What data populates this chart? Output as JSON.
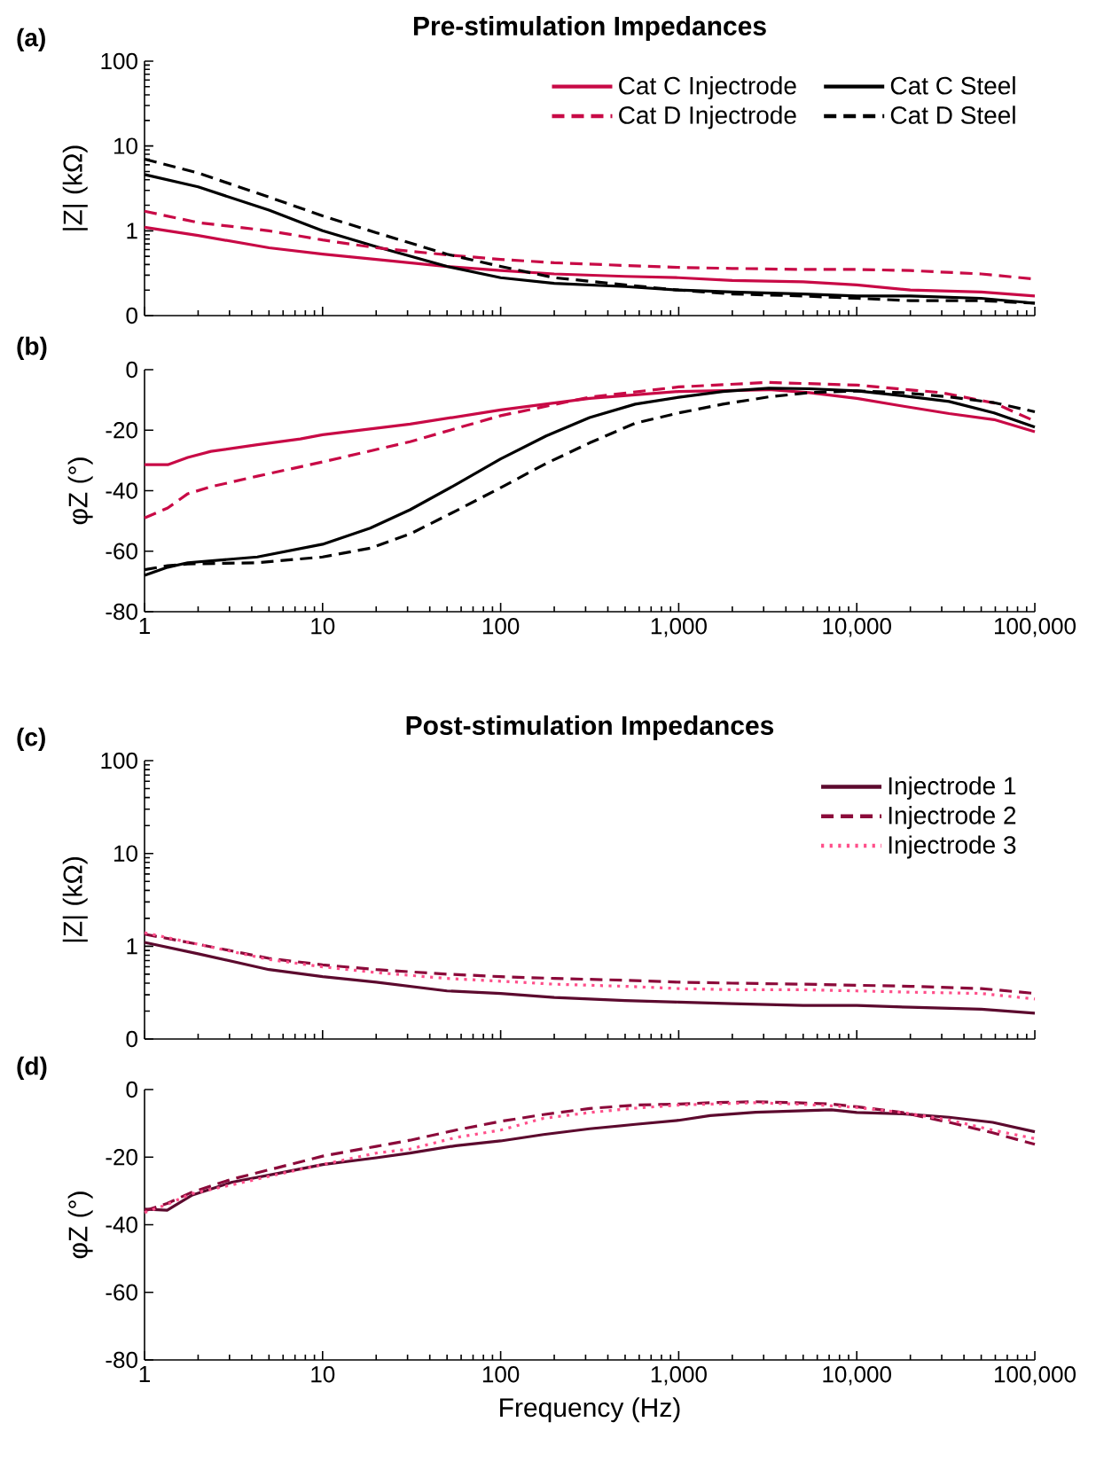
{
  "chart_data": [
    {
      "type": "line",
      "title": "Pre-stimulation Impedances",
      "annotations": [
        "(a)"
      ],
      "ylabel": "|Z| (kΩ)",
      "log": "xy",
      "tick_labels": "y",
      "legend": "top right",
      "x": [
        1,
        2,
        5,
        10,
        20,
        50,
        100,
        200,
        500,
        1000,
        2000,
        5000,
        10000,
        20000,
        50000,
        100000
      ],
      "xlim": [
        1,
        100000
      ],
      "xticks": [
        1,
        10,
        100,
        1000,
        10000,
        100000
      ],
      "ylim": [
        0.1,
        100
      ],
      "yticks": [
        {
          "value": 0.1,
          "label": "0"
        },
        1,
        10,
        100
      ],
      "series": [
        {
          "name": "Cat C Injectrode",
          "color": "#c80a46",
          "line_style": "solid",
          "values": [
            1.1,
            0.88,
            0.63,
            0.53,
            0.46,
            0.38,
            0.34,
            0.31,
            0.29,
            0.28,
            0.26,
            0.25,
            0.23,
            0.2,
            0.19,
            0.17
          ]
        },
        {
          "name": "Cat C Steel",
          "color": "#000000",
          "line_style": "solid",
          "values": [
            4.6,
            3.3,
            1.75,
            1.0,
            0.65,
            0.38,
            0.28,
            0.24,
            0.22,
            0.2,
            0.19,
            0.18,
            0.17,
            0.17,
            0.16,
            0.14
          ]
        },
        {
          "name": "Cat D Injectrode",
          "color": "#c80a46",
          "line_style": "dashed",
          "values": [
            1.7,
            1.25,
            1.0,
            0.78,
            0.63,
            0.52,
            0.46,
            0.42,
            0.39,
            0.37,
            0.36,
            0.35,
            0.35,
            0.34,
            0.31,
            0.27
          ]
        },
        {
          "name": "Cat D Steel",
          "color": "#000000",
          "line_style": "dashed",
          "values": [
            7,
            4.8,
            2.5,
            1.5,
            0.95,
            0.53,
            0.38,
            0.28,
            0.23,
            0.2,
            0.18,
            0.17,
            0.16,
            0.15,
            0.15,
            0.14
          ]
        }
      ]
    },
    {
      "type": "line",
      "annotations": [
        "(b)"
      ],
      "ylabel": "φZ (°)",
      "log": "x",
      "x": [
        1,
        1.35,
        1.75,
        4.3,
        10,
        18.5,
        31,
        56,
        100,
        180,
        316,
        570,
        1000,
        1770,
        3200,
        5400,
        10000,
        18000,
        33000,
        59000,
        100000
      ],
      "xlim": [
        1,
        100000
      ],
      "xticks": [
        1,
        10,
        100,
        {
          "value": 1000,
          "label": "1,000"
        },
        {
          "value": 10000,
          "label": "10,000"
        },
        {
          "value": 100000,
          "label": "100,000"
        }
      ],
      "ylim": [
        -80,
        0
      ],
      "yticks": [
        -80,
        -60,
        -40,
        -20,
        0
      ],
      "series": [
        {
          "color": "#c80a46",
          "line_style": "solid",
          "x": [
            1,
            1.35,
            1.75,
            2.36,
            4.3,
            7.5,
            10,
            31,
            100,
            316,
            1000,
            3200,
            5400,
            10000,
            18000,
            33000,
            59000,
            100000
          ],
          "values": [
            -31.4,
            -31.4,
            -29,
            -27,
            -24.8,
            -22.9,
            -21.5,
            -18,
            -13.3,
            -9.5,
            -7.2,
            -6.6,
            -7.6,
            -9.5,
            -12,
            -14.5,
            -16.5,
            -20.5
          ]
        },
        {
          "color": "#000000",
          "line_style": "solid",
          "values": [
            -68,
            -65.3,
            -63.8,
            -61.9,
            -57.7,
            -52.4,
            -46.3,
            -38,
            -29.5,
            -21.9,
            -15.8,
            -11.4,
            -9.1,
            -7.2,
            -6.1,
            -6.3,
            -7,
            -8.6,
            -10.5,
            -14.3,
            -19
          ]
        },
        {
          "color": "#c80a46",
          "line_style": "dashed",
          "x": [
            1,
            1.35,
            1.75,
            2.36,
            4.3,
            10,
            31,
            100,
            316,
            1000,
            3200,
            10000,
            30000,
            59000,
            100000
          ],
          "values": [
            -49,
            -45.7,
            -41,
            -38.7,
            -35.2,
            -30.5,
            -23.8,
            -15.2,
            -9.1,
            -5.7,
            -4.2,
            -5.1,
            -7.6,
            -11,
            -17
          ]
        },
        {
          "color": "#000000",
          "line_style": "dashed",
          "values": [
            -66.1,
            -64.8,
            -64.2,
            -63.8,
            -61.9,
            -59,
            -54.3,
            -46.7,
            -39,
            -31,
            -24.2,
            -17.7,
            -14.3,
            -11.4,
            -9,
            -7.6,
            -7,
            -7.6,
            -9,
            -10.9,
            -13.9
          ]
        }
      ]
    },
    {
      "type": "line",
      "title": "Post-stimulation Impedances",
      "annotations": [
        "(c)"
      ],
      "ylabel": "|Z| (kΩ)",
      "log": "xy",
      "tick_labels": "y",
      "legend": "top right",
      "x": [
        1,
        2,
        5,
        10,
        20,
        50,
        100,
        200,
        500,
        1000,
        2000,
        5000,
        10000,
        20000,
        50000,
        100000
      ],
      "xlim": [
        1,
        100000
      ],
      "xticks": [
        1,
        10,
        100,
        1000,
        10000,
        100000
      ],
      "ylim": [
        0.1,
        100
      ],
      "yticks": [
        {
          "value": 0.1,
          "label": "0"
        },
        1,
        10,
        100
      ],
      "series": [
        {
          "name": "Injectrode 1",
          "color": "#5c0a2e",
          "line_style": "solid",
          "values": [
            1.1,
            0.83,
            0.56,
            0.47,
            0.41,
            0.33,
            0.31,
            0.28,
            0.26,
            0.25,
            0.24,
            0.23,
            0.23,
            0.22,
            0.21,
            0.19
          ]
        },
        {
          "name": "Injectrode 2",
          "color": "#8b0a3a",
          "line_style": "dashed",
          "values": [
            1.35,
            1.05,
            0.74,
            0.63,
            0.56,
            0.5,
            0.47,
            0.45,
            0.43,
            0.41,
            0.4,
            0.39,
            0.38,
            0.37,
            0.35,
            0.31
          ]
        },
        {
          "name": "Injectrode 3",
          "color": "#ff4f8a",
          "line_style": "dotted",
          "values": [
            1.4,
            1.05,
            0.72,
            0.6,
            0.52,
            0.45,
            0.42,
            0.39,
            0.37,
            0.35,
            0.34,
            0.34,
            0.33,
            0.32,
            0.31,
            0.27
          ]
        }
      ]
    },
    {
      "type": "line",
      "annotations": [
        "(d)"
      ],
      "ylabel": "φZ (°)",
      "xlabel": "Frequency (Hz)",
      "log": "x",
      "x": [
        1,
        1.34,
        1.84,
        3.1,
        5.6,
        10,
        20,
        31,
        56,
        100,
        174,
        316,
        570,
        1000,
        1500,
        2700,
        4600,
        7200,
        10000,
        18000,
        33000,
        58000,
        100000
      ],
      "xlim": [
        1,
        100000
      ],
      "xticks": [
        1,
        10,
        100,
        {
          "value": 1000,
          "label": "1,000"
        },
        {
          "value": 10000,
          "label": "10,000"
        },
        {
          "value": 100000,
          "label": "100,000"
        }
      ],
      "ylim": [
        -80,
        0
      ],
      "yticks": [
        -80,
        -60,
        -40,
        -20,
        0
      ],
      "series": [
        {
          "color": "#5c0a2e",
          "line_style": "solid",
          "values": [
            -35.4,
            -35.7,
            -31.3,
            -27.4,
            -24.8,
            -22.2,
            -20.2,
            -18.8,
            -16.6,
            -15.2,
            -13.3,
            -11.6,
            -10.3,
            -9.1,
            -7.7,
            -6.7,
            -6.3,
            -6,
            -6.8,
            -7.2,
            -8.2,
            -9.7,
            -12.5
          ]
        },
        {
          "color": "#8b0a3a",
          "line_style": "dashed",
          "values": [
            -35.9,
            -33.7,
            -30.4,
            -26.5,
            -23.1,
            -19.7,
            -16.8,
            -15,
            -12,
            -9.4,
            -7.4,
            -5.6,
            -4.6,
            -4.3,
            -3.9,
            -3.6,
            -3.9,
            -4.3,
            -5.1,
            -6.8,
            -9.7,
            -12.8,
            -16.2
          ]
        },
        {
          "color": "#ff4f8a",
          "line_style": "dotted",
          "values": [
            -36.4,
            -34,
            -30.8,
            -28.2,
            -25.1,
            -22.2,
            -18.8,
            -17.6,
            -14.2,
            -12,
            -8.5,
            -6.8,
            -5.5,
            -4.6,
            -4.3,
            -3.9,
            -4.3,
            -4.8,
            -5.3,
            -6.8,
            -9,
            -12,
            -14.5
          ]
        }
      ]
    }
  ]
}
